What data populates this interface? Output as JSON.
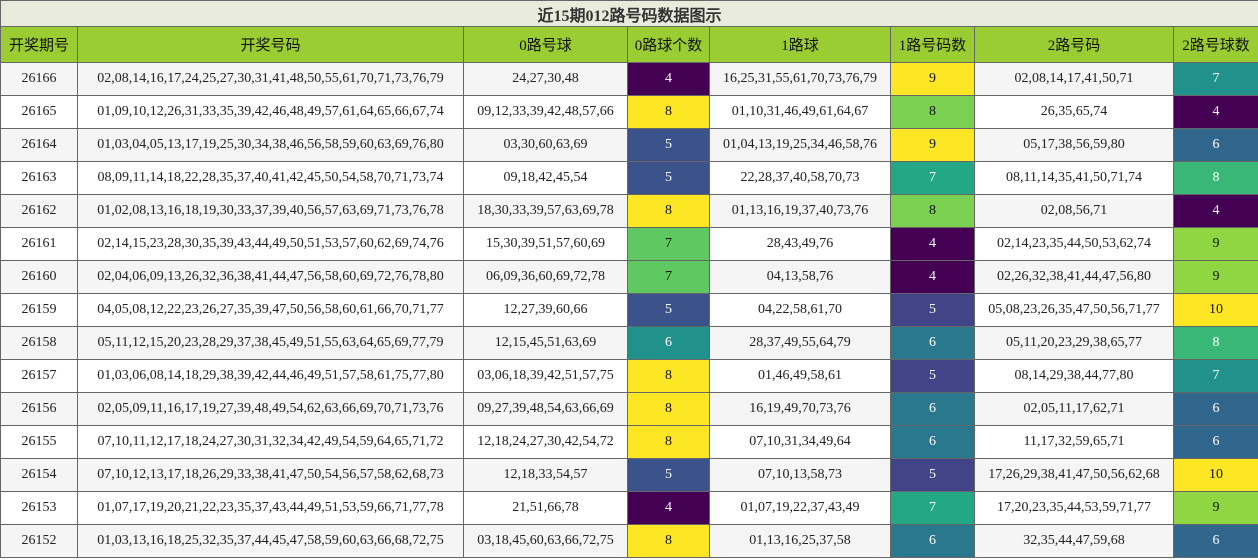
{
  "table": {
    "title": "近15期012路号码数据图示",
    "headers": [
      "开奖期号",
      "开奖号码",
      "0路号球",
      "0路球个数",
      "1路球",
      "1路号码数",
      "2路号码",
      "2路号球数"
    ],
    "rows": [
      [
        "26166",
        "02,08,14,16,17,24,25,27,30,31,41,48,50,55,61,70,71,73,76,79",
        "24,27,30,48",
        4,
        "16,25,31,55,61,70,73,76,79",
        9,
        "02,08,14,17,41,50,71",
        7
      ],
      [
        "26165",
        "01,09,10,12,26,31,33,35,39,42,46,48,49,57,61,64,65,66,67,74",
        "09,12,33,39,42,48,57,66",
        8,
        "01,10,31,46,49,61,64,67",
        8,
        "26,35,65,74",
        4
      ],
      [
        "26164",
        "01,03,04,05,13,17,19,25,30,34,38,46,56,58,59,60,63,69,76,80",
        "03,30,60,63,69",
        5,
        "01,04,13,19,25,34,46,58,76",
        9,
        "05,17,38,56,59,80",
        6
      ],
      [
        "26163",
        "08,09,11,14,18,22,28,35,37,40,41,42,45,50,54,58,70,71,73,74",
        "09,18,42,45,54",
        5,
        "22,28,37,40,58,70,73",
        7,
        "08,11,14,35,41,50,71,74",
        8
      ],
      [
        "26162",
        "01,02,08,13,16,18,19,30,33,37,39,40,56,57,63,69,71,73,76,78",
        "18,30,33,39,57,63,69,78",
        8,
        "01,13,16,19,37,40,73,76",
        8,
        "02,08,56,71",
        4
      ],
      [
        "26161",
        "02,14,15,23,28,30,35,39,43,44,49,50,51,53,57,60,62,69,74,76",
        "15,30,39,51,57,60,69",
        7,
        "28,43,49,76",
        4,
        "02,14,23,35,44,50,53,62,74",
        9
      ],
      [
        "26160",
        "02,04,06,09,13,26,32,36,38,41,44,47,56,58,60,69,72,76,78,80",
        "06,09,36,60,69,72,78",
        7,
        "04,13,58,76",
        4,
        "02,26,32,38,41,44,47,56,80",
        9
      ],
      [
        "26159",
        "04,05,08,12,22,23,26,27,35,39,47,50,56,58,60,61,66,70,71,77",
        "12,27,39,60,66",
        5,
        "04,22,58,61,70",
        5,
        "05,08,23,26,35,47,50,56,71,77",
        10
      ],
      [
        "26158",
        "05,11,12,15,20,23,28,29,37,38,45,49,51,55,63,64,65,69,77,79",
        "12,15,45,51,63,69",
        6,
        "28,37,49,55,64,79",
        6,
        "05,11,20,23,29,38,65,77",
        8
      ],
      [
        "26157",
        "01,03,06,08,14,18,29,38,39,42,44,46,49,51,57,58,61,75,77,80",
        "03,06,18,39,42,51,57,75",
        8,
        "01,46,49,58,61",
        5,
        "08,14,29,38,44,77,80",
        7
      ],
      [
        "26156",
        "02,05,09,11,16,17,19,27,39,48,49,54,62,63,66,69,70,71,73,76",
        "09,27,39,48,54,63,66,69",
        8,
        "16,19,49,70,73,76",
        6,
        "02,05,11,17,62,71",
        6
      ],
      [
        "26155",
        "07,10,11,12,17,18,24,27,30,31,32,34,42,49,54,59,64,65,71,72",
        "12,18,24,27,30,42,54,72",
        8,
        "07,10,31,34,49,64",
        6,
        "11,17,32,59,65,71",
        6
      ],
      [
        "26154",
        "07,10,12,13,17,18,26,29,33,38,41,47,50,54,56,57,58,62,68,73",
        "12,18,33,54,57",
        5,
        "07,10,13,58,73",
        5,
        "17,26,29,38,41,47,50,56,62,68",
        10
      ],
      [
        "26153",
        "01,07,17,19,20,21,22,23,35,37,43,44,49,51,53,59,66,71,77,78",
        "21,51,66,78",
        4,
        "01,07,19,22,37,43,49",
        7,
        "17,20,23,35,44,53,59,71,77",
        9
      ],
      [
        "26152",
        "01,03,13,16,18,25,32,35,37,44,45,47,58,59,60,63,66,68,72,75",
        "03,18,45,60,63,66,72,75",
        8,
        "01,13,16,25,37,58",
        6,
        "32,35,44,47,59,68",
        6
      ]
    ]
  }
}
